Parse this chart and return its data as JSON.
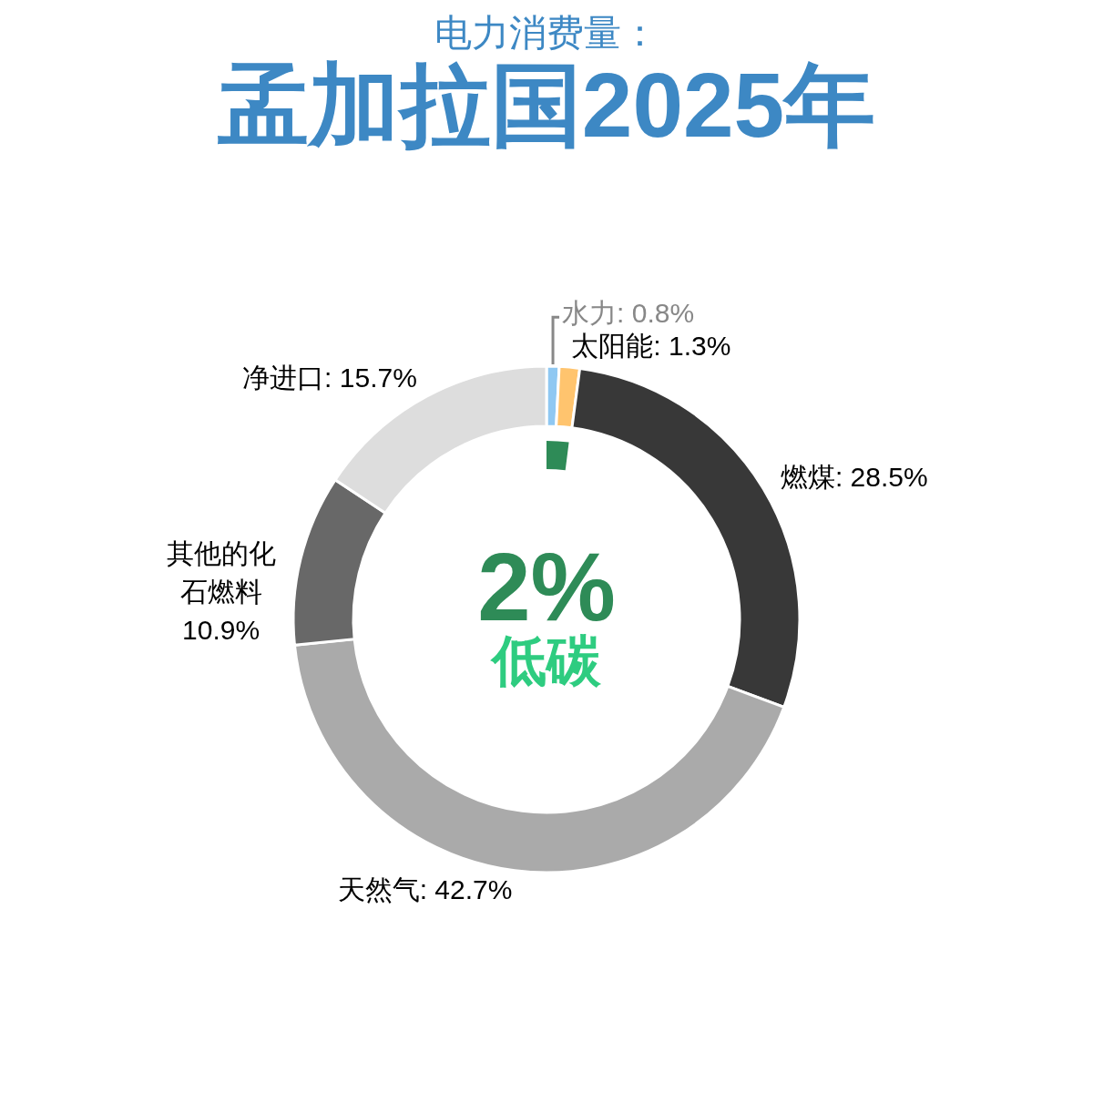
{
  "chart_data": {
    "type": "donut",
    "title": "孟加拉国2025年",
    "subtitle": "电力消费量：",
    "categories": [
      "水力",
      "太阳能",
      "燃煤",
      "天然气",
      "其他的化石燃料",
      "净进口"
    ],
    "values": [
      0.8,
      1.3,
      28.5,
      42.7,
      10.9,
      15.7
    ],
    "colors": [
      "#8fc8f2",
      "#ffc46e",
      "#383838",
      "#aaaaaa",
      "#686868",
      "#dddddd"
    ],
    "value_labels": [
      "0.8%",
      "1.3%",
      "28.5%",
      "42.7%",
      "10.9%",
      "15.7%"
    ],
    "annotations": [
      "2%",
      "低碳"
    ]
  }
}
